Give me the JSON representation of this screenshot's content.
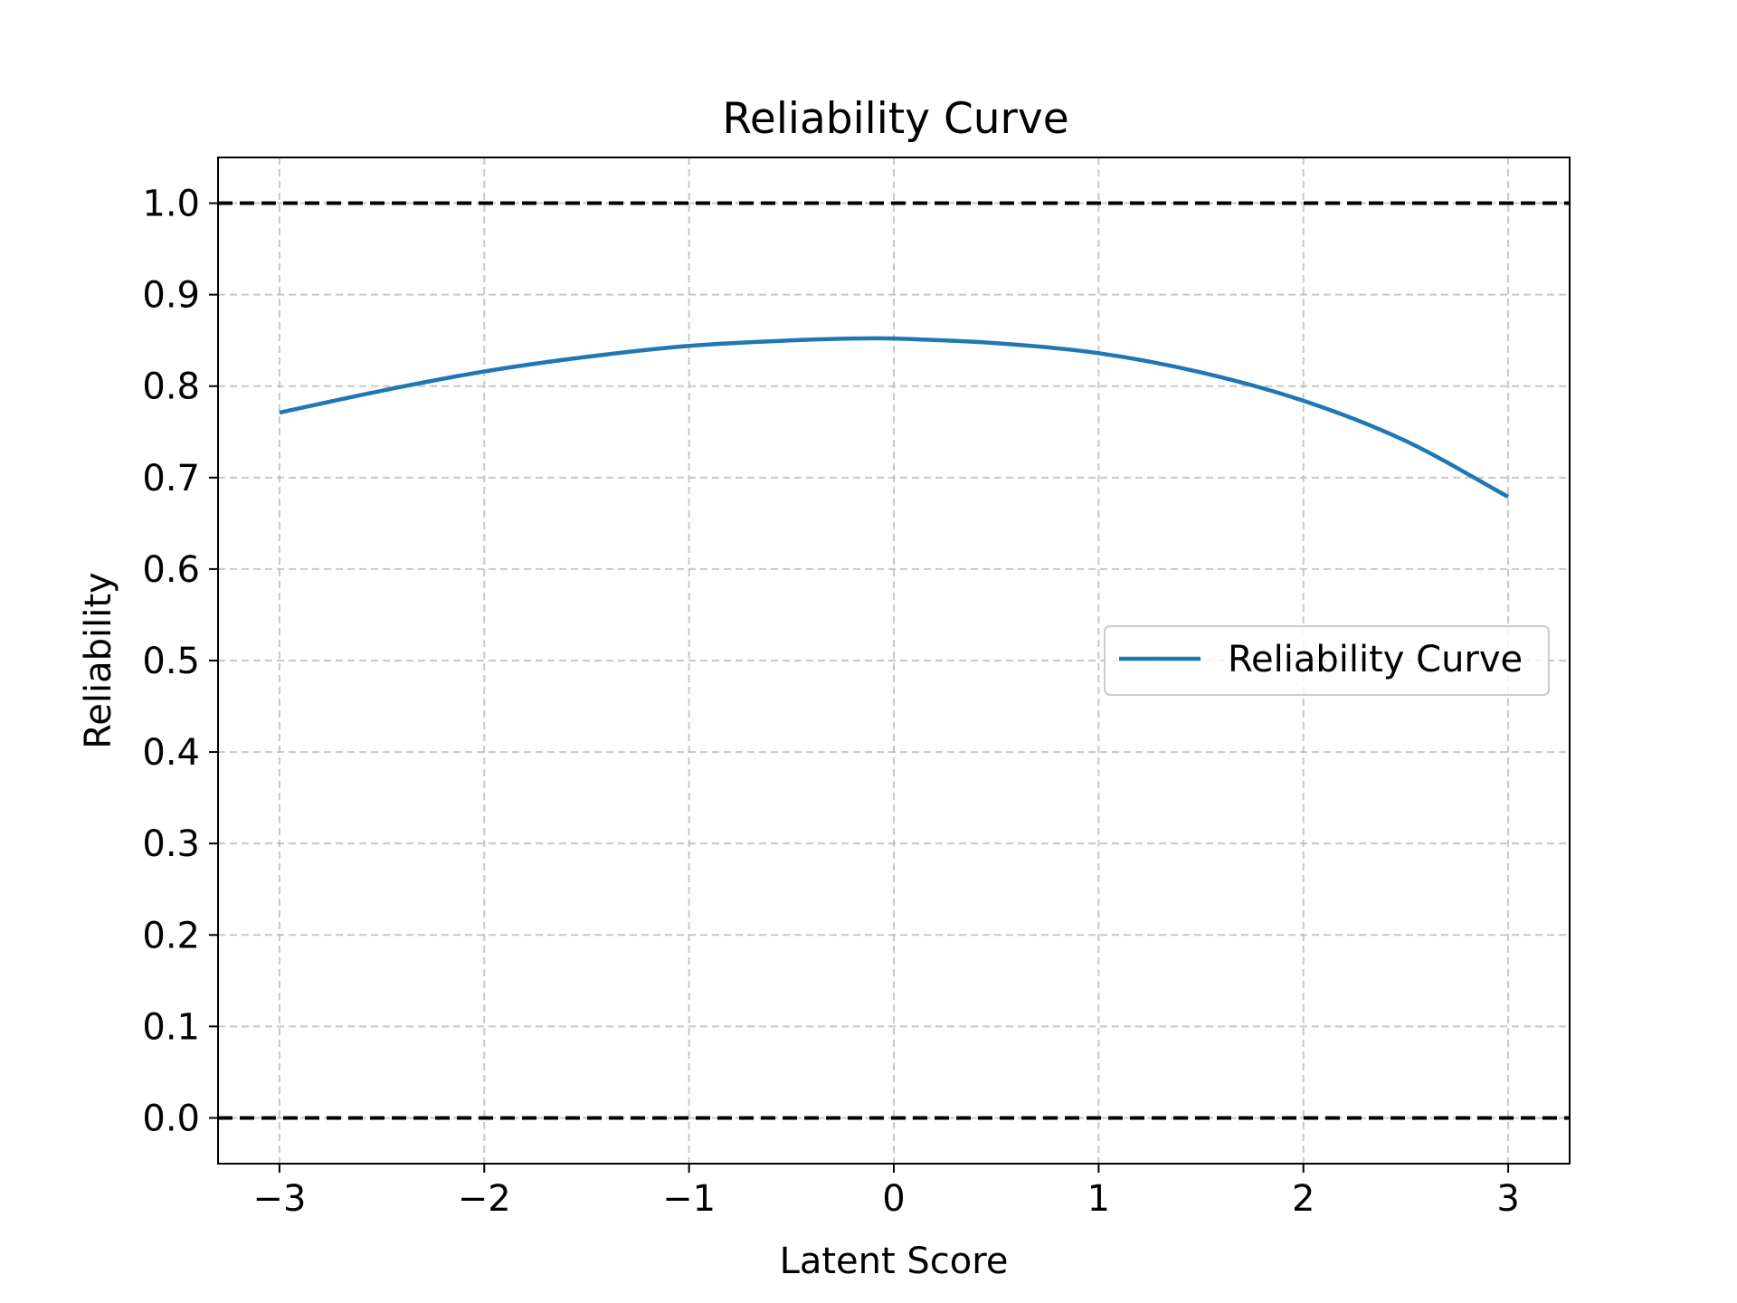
{
  "chart_data": {
    "type": "line",
    "title": "Reliability Curve",
    "xlabel": "Latent Score",
    "ylabel": "Reliability",
    "xlim": [
      -3.3,
      3.3
    ],
    "ylim": [
      -0.05,
      1.05
    ],
    "xticks": [
      -3,
      -2,
      -1,
      0,
      1,
      2,
      3
    ],
    "xtick_labels": [
      "−3",
      "−2",
      "−1",
      "0",
      "1",
      "2",
      "3"
    ],
    "yticks": [
      0.0,
      0.1,
      0.2,
      0.3,
      0.4,
      0.5,
      0.6,
      0.7,
      0.8,
      0.9,
      1.0
    ],
    "ytick_labels": [
      "0.0",
      "0.1",
      "0.2",
      "0.3",
      "0.4",
      "0.5",
      "0.6",
      "0.7",
      "0.8",
      "0.9",
      "1.0"
    ],
    "grid": true,
    "legend_position": "center-right",
    "reference_lines": [
      {
        "axis": "y",
        "value": 1.0,
        "style": "dashed",
        "color": "#000000"
      },
      {
        "axis": "y",
        "value": 0.0,
        "style": "dashed",
        "color": "#000000"
      }
    ],
    "series": [
      {
        "name": "Reliability Curve",
        "color": "#1f77b4",
        "x": [
          -3.0,
          -2.5,
          -2.0,
          -1.5,
          -1.0,
          -0.5,
          -0.2,
          0.0,
          0.5,
          1.0,
          1.5,
          2.0,
          2.5,
          3.0
        ],
        "y": [
          0.771,
          0.795,
          0.816,
          0.832,
          0.844,
          0.85,
          0.852,
          0.852,
          0.847,
          0.836,
          0.815,
          0.784,
          0.74,
          0.679
        ]
      }
    ]
  }
}
